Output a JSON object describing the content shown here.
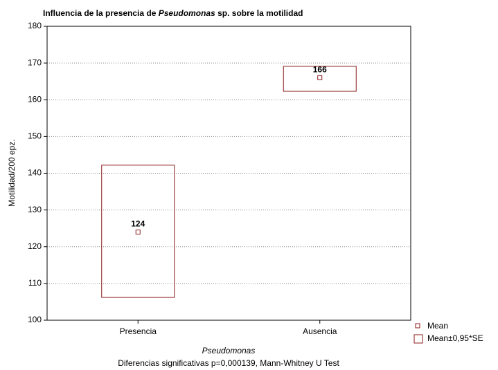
{
  "chart_data": {
    "type": "box",
    "title": [
      "Influencia de la presencia de ",
      "Pseudomonas",
      " sp. sobre la motilidad"
    ],
    "xlabel": "Pseudomonas",
    "ylabel": "Motilidad/200 epz.",
    "footnote": "Diferencias significativas p=0,000139, Mann-Whitney U Test",
    "categories": [
      "Presencia",
      "Ausencia"
    ],
    "series": [
      {
        "name": "Mean",
        "color": "#8b1a1a",
        "values": [
          124,
          166
        ],
        "value_labels": [
          "124",
          "166"
        ]
      },
      {
        "name": "Mean±0,95*SE",
        "color": "#8b1a1a",
        "low": [
          106.2,
          162.3
        ],
        "high": [
          142.2,
          169.1
        ]
      }
    ],
    "ylim": [
      100,
      180
    ],
    "yticks": [
      100,
      110,
      120,
      130,
      140,
      150,
      160,
      170,
      180
    ],
    "grid": true
  }
}
